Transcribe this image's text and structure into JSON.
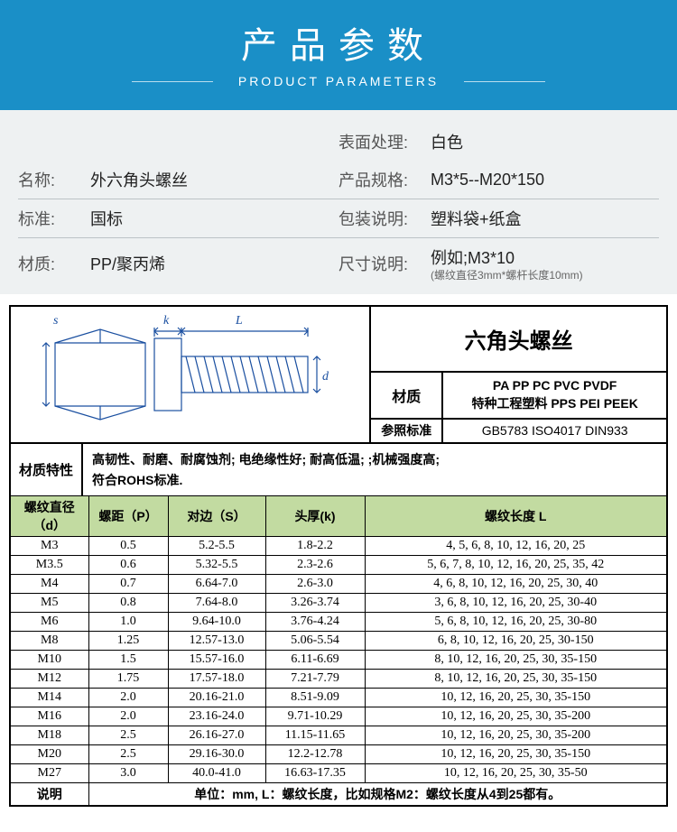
{
  "header": {
    "cn": "产品参数",
    "en": "PRODUCT PARAMETERS"
  },
  "info": {
    "rows": [
      {
        "l_label": "",
        "l_value": "",
        "r_label": "表面处理:",
        "r_value": "白色"
      },
      {
        "l_label": "名称:",
        "l_value": "外六角头螺丝",
        "r_label": "产品规格:",
        "r_value": "M3*5--M20*150"
      },
      {
        "l_label": "标准:",
        "l_value": "国标",
        "r_label": "包装说明:",
        "r_value": "塑料袋+纸盒"
      },
      {
        "l_label": "材质:",
        "l_value": "PP/聚丙烯",
        "r_label": "尺寸说明:",
        "r_value": "例如;M3*10",
        "r_note": "(螺纹直径3mm*螺杆长度10mm)"
      }
    ]
  },
  "spec": {
    "title": "六角头螺丝",
    "material_label": "材质",
    "material_value1": "PA PP PC PVC  PVDF",
    "material_value2": "特种工程塑料 PPS PEI  PEEK",
    "std_label": "参照标准",
    "std_value": "GB5783 ISO4017 DIN933",
    "char_label": "材质特性",
    "char_value1": "高韧性、耐磨、耐腐蚀剂;  电绝缘性好;  耐高低温;          ;机械强度高;",
    "char_value2": "符合ROHS标准.",
    "diagram_labels": {
      "s": "s",
      "k": "k",
      "L": "L",
      "d": "d"
    }
  },
  "table": {
    "headers": [
      "螺纹直径（d）",
      "螺距（P）",
      "对边（S）",
      "头厚(k)",
      "螺纹长度 L"
    ],
    "rows": [
      [
        "M3",
        "0.5",
        "5.2-5.5",
        "1.8-2.2",
        "4, 5, 6, 8, 10, 12, 16, 20, 25"
      ],
      [
        "M3.5",
        "0.6",
        "5.32-5.5",
        "2.3-2.6",
        "5, 6, 7, 8, 10, 12, 16, 20, 25, 35, 42"
      ],
      [
        "M4",
        "0.7",
        "6.64-7.0",
        "2.6-3.0",
        "4, 6, 8, 10, 12, 16, 20, 25, 30, 40"
      ],
      [
        "M5",
        "0.8",
        "7.64-8.0",
        "3.26-3.74",
        "3, 6, 8, 10, 12, 16, 20, 25, 30-40"
      ],
      [
        "M6",
        "1.0",
        "9.64-10.0",
        "3.76-4.24",
        "5, 6, 8, 10, 12, 16, 20, 25, 30-80"
      ],
      [
        "M8",
        "1.25",
        "12.57-13.0",
        "5.06-5.54",
        "6, 8, 10, 12, 16, 20, 25, 30-150"
      ],
      [
        "M10",
        "1.5",
        "15.57-16.0",
        "6.11-6.69",
        "8, 10, 12, 16, 20, 25, 30, 35-150"
      ],
      [
        "M12",
        "1.75",
        "17.57-18.0",
        "7.21-7.79",
        "8,  10, 12, 16, 20, 25, 30, 35-150"
      ],
      [
        "M14",
        "2.0",
        "20.16-21.0",
        "8.51-9.09",
        "10, 12, 16, 20, 25, 30, 35-150"
      ],
      [
        "M16",
        "2.0",
        "23.16-24.0",
        "9.71-10.29",
        "10, 12, 16, 20, 25, 30, 35-200"
      ],
      [
        "M18",
        "2.5",
        "26.16-27.0",
        "11.15-11.65",
        "10, 12, 16, 20, 25, 30, 35-200"
      ],
      [
        "M20",
        "2.5",
        "29.16-30.0",
        "12.2-12.78",
        "10, 12, 16, 20, 25, 30, 35-150"
      ],
      [
        "M27",
        "3.0",
        "40.0-41.0",
        "16.63-17.35",
        "10, 12, 16, 20, 25, 30, 35-50"
      ]
    ],
    "note_label": "说明",
    "note_value": "单位：mm, L：螺纹长度，比如规格M2：螺纹长度从4到25都有。"
  },
  "colors": {
    "header_bg": "#1a8fc7",
    "table_header_bg": "#c2dba1",
    "diagram_stroke": "#1a4fa0"
  }
}
